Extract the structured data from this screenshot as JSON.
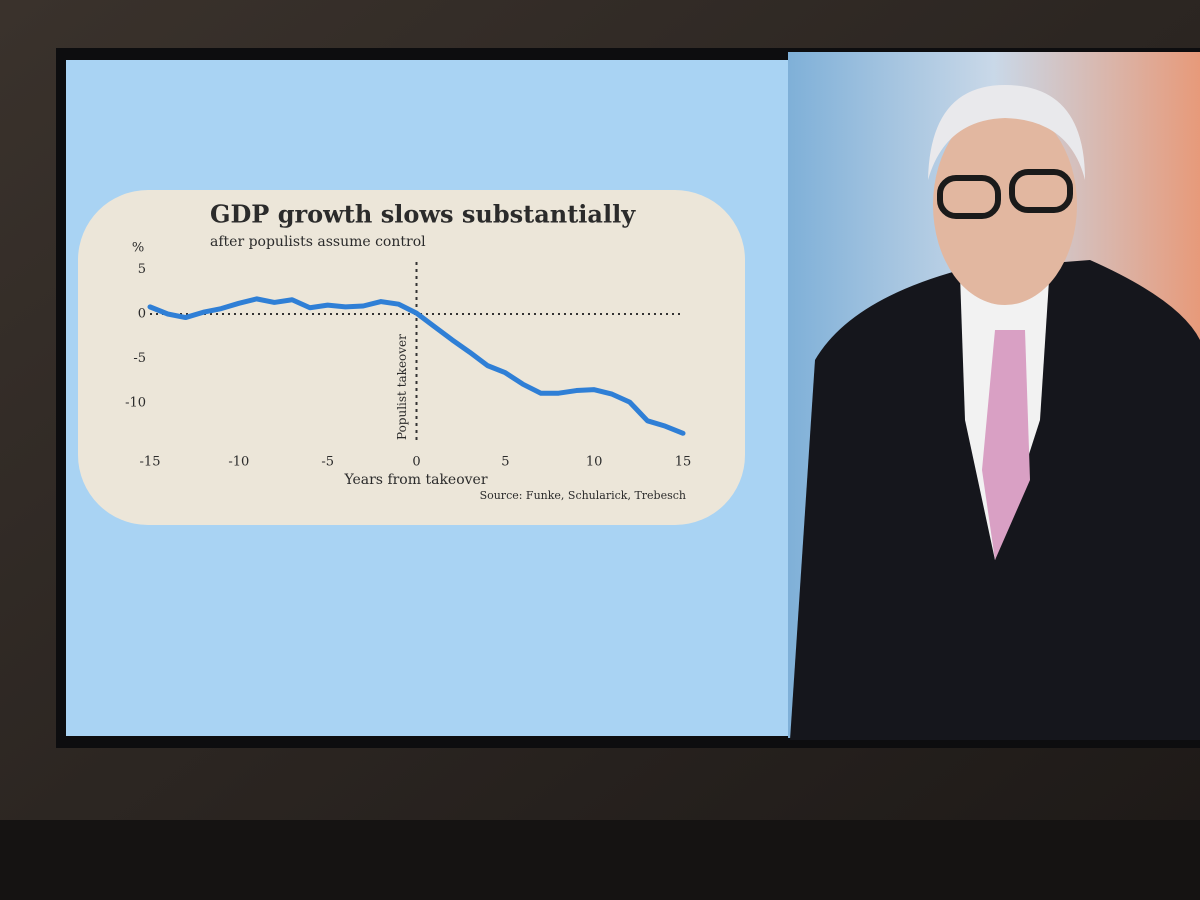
{
  "chart_data": {
    "type": "line",
    "title": "GDP growth slows substantially",
    "subtitle": "after populists assume control",
    "y_label": "%",
    "x_label": "Years from takeover",
    "source": "Source: Funke, Schularick, Trebesch",
    "annotation": {
      "text": "Populist takeover",
      "x": 0
    },
    "hline": 0,
    "x": [
      -15,
      -14,
      -13,
      -12,
      -11,
      -10,
      -9,
      -8,
      -7,
      -6,
      -5,
      -4,
      -3,
      -2,
      -1,
      0,
      1,
      2,
      3,
      4,
      5,
      6,
      7,
      8,
      9,
      10,
      11,
      12,
      13,
      14,
      15
    ],
    "values": [
      0.8,
      0,
      -0.4,
      0.2,
      0.6,
      1.2,
      1.7,
      1.3,
      1.6,
      0.7,
      1.0,
      0.8,
      0.9,
      1.4,
      1.1,
      0.1,
      -1.4,
      -2.9,
      -4.3,
      -5.8,
      -6.6,
      -7.9,
      -8.9,
      -8.9,
      -8.6,
      -8.5,
      -9.0,
      -9.9,
      -12.0,
      -12.6,
      -13.4
    ],
    "color": "#2f7fd6",
    "xlim": [
      -15,
      15
    ],
    "ylim": [
      -14,
      6
    ],
    "xticks": [
      -15,
      -10,
      -5,
      0,
      5,
      10,
      15
    ],
    "yticks": [
      5,
      0,
      -5,
      -10
    ],
    "grid": false
  }
}
